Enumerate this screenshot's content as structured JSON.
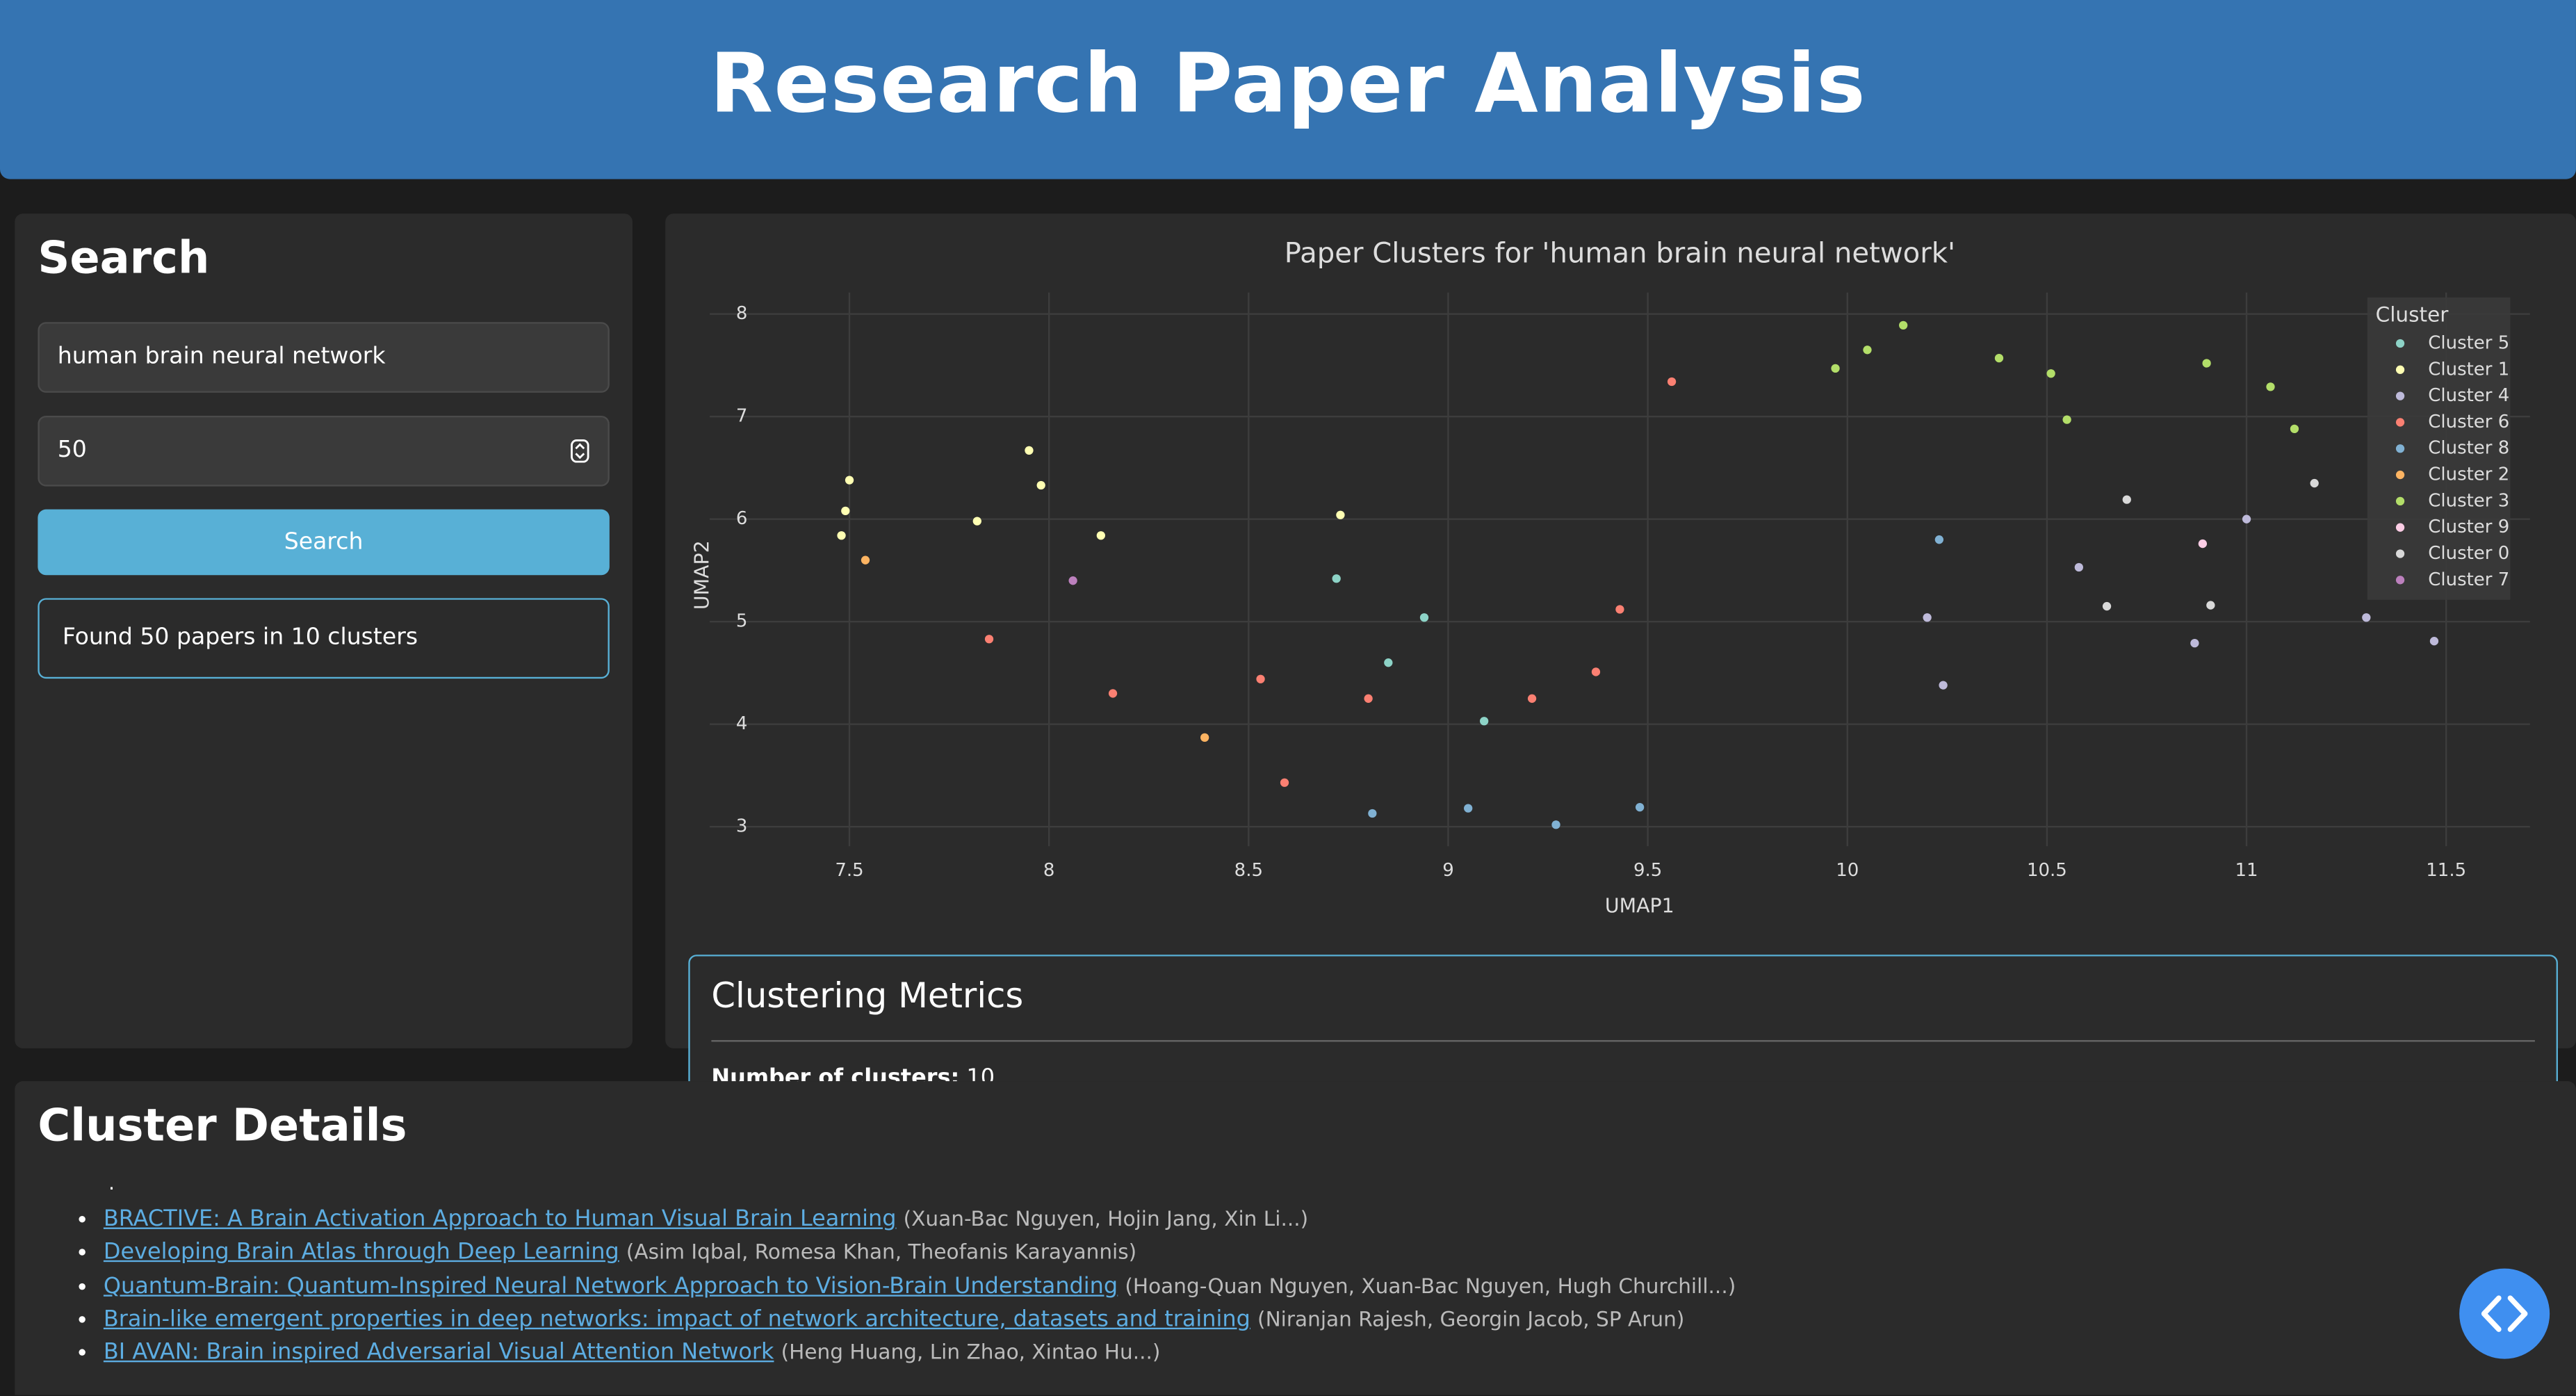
{
  "header": {
    "title": "Research Paper Analysis"
  },
  "search": {
    "title": "Search",
    "query": "human brain neural network",
    "count": 50,
    "button": "Search",
    "status": "Found 50 papers in 10 clusters"
  },
  "chart_data": {
    "type": "scatter",
    "title": "Paper Clusters for 'human brain neural network'",
    "x_label": "UMAP1",
    "y_label": "UMAP2",
    "legend_title": "Cluster",
    "legend": "top-right",
    "grid": true,
    "xlim": [
      7.15,
      11.71
    ],
    "ylim": [
      2.81,
      8.21
    ],
    "xticks": [
      7.5,
      8,
      8.5,
      9,
      9.5,
      10,
      10.5,
      11,
      11.5
    ],
    "yticks": [
      3,
      4,
      5,
      6,
      7,
      8
    ],
    "series": [
      {
        "name": "Cluster 5",
        "color": "#8dd3c7",
        "x": [
          8.72,
          8.94,
          8.85,
          9.09
        ],
        "values": [
          5.42,
          5.04,
          4.6,
          4.03
        ]
      },
      {
        "name": "Cluster 1",
        "color": "#ffffb3",
        "x": [
          7.5,
          7.49,
          7.48,
          7.82,
          7.95,
          7.98,
          8.13,
          8.73
        ],
        "values": [
          6.38,
          6.08,
          5.84,
          5.98,
          6.67,
          6.33,
          5.84,
          6.04
        ]
      },
      {
        "name": "Cluster 4",
        "color": "#bebada",
        "x": [
          10.2,
          10.24,
          10.58,
          10.87,
          11.0,
          11.3,
          11.47
        ],
        "values": [
          5.04,
          4.38,
          5.53,
          4.79,
          6.0,
          5.04,
          4.81
        ]
      },
      {
        "name": "Cluster 6",
        "color": "#fb8072",
        "x": [
          7.85,
          8.16,
          8.53,
          8.59,
          8.8,
          9.21,
          9.37,
          9.43,
          9.56
        ],
        "values": [
          4.83,
          4.3,
          4.44,
          3.43,
          4.25,
          4.25,
          4.51,
          5.12,
          7.34
        ]
      },
      {
        "name": "Cluster 8",
        "color": "#80b1d3",
        "x": [
          8.81,
          9.05,
          9.27,
          9.48,
          10.23
        ],
        "values": [
          3.13,
          3.18,
          3.02,
          3.19,
          5.8
        ]
      },
      {
        "name": "Cluster 2",
        "color": "#fdb462",
        "x": [
          7.54,
          8.39
        ],
        "values": [
          5.6,
          3.87
        ]
      },
      {
        "name": "Cluster 3",
        "color": "#b3de69",
        "x": [
          9.97,
          10.05,
          10.14,
          10.38,
          10.51,
          10.55,
          10.9,
          11.06,
          11.12
        ],
        "values": [
          7.47,
          7.65,
          7.89,
          7.57,
          7.42,
          6.97,
          7.52,
          7.29,
          6.88
        ]
      },
      {
        "name": "Cluster 9",
        "color": "#fccde5",
        "x": [
          10.89
        ],
        "values": [
          5.76
        ]
      },
      {
        "name": "Cluster 0",
        "color": "#d9d9d9",
        "x": [
          10.7,
          10.65,
          10.91,
          11.17
        ],
        "values": [
          6.19,
          5.15,
          5.16,
          6.35
        ]
      },
      {
        "name": "Cluster 7",
        "color": "#bc80bd",
        "x": [
          8.06
        ],
        "values": [
          5.4
        ]
      }
    ]
  },
  "metrics": {
    "title": "Clustering Metrics",
    "label": "Number of clusters:",
    "value": 10
  },
  "details": {
    "title": "Cluster Details",
    "note": ".",
    "papers": [
      {
        "title": "BRACTIVE: A Brain Activation Approach to Human Visual Brain Learning",
        "authors": "(Xuan-Bac Nguyen, Hojin Jang, Xin Li...)"
      },
      {
        "title": "Developing Brain Atlas through Deep Learning",
        "authors": "(Asim Iqbal, Romesa Khan, Theofanis Karayannis)"
      },
      {
        "title": "Quantum-Brain: Quantum-Inspired Neural Network Approach to Vision-Brain Understanding",
        "authors": "(Hoang-Quan Nguyen, Xuan-Bac Nguyen, Hugh Churchill...)"
      },
      {
        "title": "Brain-like emergent properties in deep networks: impact of network architecture, datasets and training",
        "authors": "(Niranjan Rajesh, Georgin Jacob, SP Arun)"
      },
      {
        "title": "BI AVAN: Brain inspired Adversarial Visual Attention Network",
        "authors": "(Heng Huang, Lin Zhao, Xintao Hu...)"
      }
    ]
  }
}
